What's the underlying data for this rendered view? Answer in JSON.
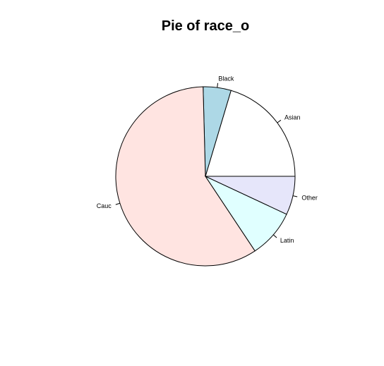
{
  "chart_data": {
    "type": "pie",
    "title": "Pie of race_o",
    "slices": [
      {
        "label": "Asian",
        "value": 19.9,
        "color": "#ffffff"
      },
      {
        "label": "Black",
        "value": 4.9,
        "color": "#add8e6"
      },
      {
        "label": "Cauc",
        "value": 57.5,
        "color": "#ffe4e1"
      },
      {
        "label": "Latin",
        "value": 8.5,
        "color": "#e0ffff"
      },
      {
        "label": "Other",
        "value": 6.8,
        "color": "#e6e6fa"
      }
    ],
    "start_angle_deg": 0,
    "direction": "counterclockwise"
  }
}
